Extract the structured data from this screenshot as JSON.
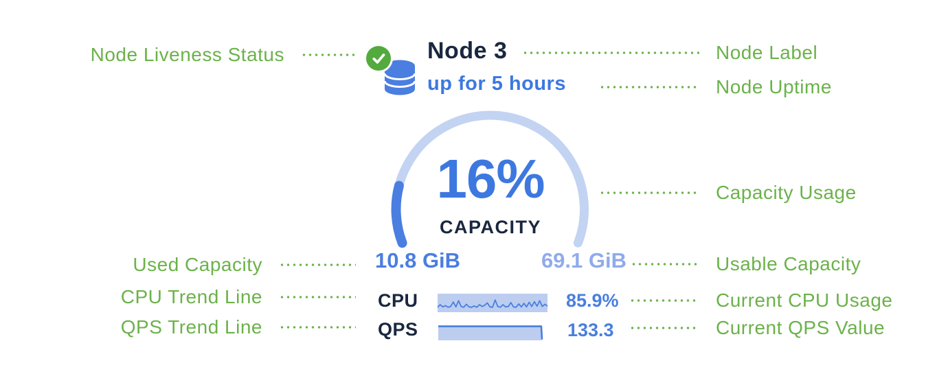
{
  "node": {
    "label": "Node 3",
    "uptime": "up for 5 hours",
    "capacity_percent_label": "16%",
    "capacity_caption": "CAPACITY",
    "used_capacity": "10.8 GiB",
    "usable_capacity": "69.1 GiB",
    "cpu": {
      "label": "CPU",
      "value": "85.9%"
    },
    "qps": {
      "label": "QPS",
      "value": "133.3"
    }
  },
  "annotations": {
    "left": [
      {
        "id": "node-liveness-status",
        "label": "Node Liveness Status"
      },
      {
        "id": "used-capacity",
        "label": "Used Capacity"
      },
      {
        "id": "cpu-trend-line",
        "label": "CPU Trend Line"
      },
      {
        "id": "qps-trend-line",
        "label": "QPS Trend Line"
      }
    ],
    "right": [
      {
        "id": "node-label",
        "label": "Node Label"
      },
      {
        "id": "node-uptime",
        "label": "Node Uptime"
      },
      {
        "id": "capacity-usage",
        "label": "Capacity Usage"
      },
      {
        "id": "usable-capacity",
        "label": "Usable Capacity"
      },
      {
        "id": "current-cpu-usage",
        "label": "Current CPU Usage"
      },
      {
        "id": "current-qps-value",
        "label": "Current QPS Value"
      }
    ]
  },
  "icons": {
    "liveness": "check-circle-icon",
    "node": "database-icon"
  },
  "colors": {
    "annotation_green": "#6bb24a",
    "status_green": "#53aa3d",
    "node_blue": "#4a7ee0",
    "value_blue": "#3d78e0",
    "usable_blue": "#8fabec",
    "navy": "#19273f",
    "track_blue": "#c3d3f2",
    "spark_bg": "#bccdf0"
  },
  "chart_data": {
    "type": "node-status-widget",
    "gauge": {
      "type": "gauge",
      "percent": 16,
      "label": "CAPACITY",
      "used_gib": 10.8,
      "usable_gib": 69.1,
      "start_angle_deg": 201,
      "end_angle_deg": -21
    },
    "cpu_trend": {
      "type": "line",
      "current_percent": 85.9,
      "values_normalized": [
        0.22,
        0.42,
        0.25,
        0.35,
        0.22,
        0.28,
        0.62,
        0.25,
        0.72,
        0.28,
        0.22,
        0.45,
        0.25,
        0.22,
        0.32,
        0.22,
        0.42,
        0.28,
        0.38,
        0.55,
        0.25,
        0.22,
        0.78,
        0.28,
        0.22,
        0.42,
        0.25,
        0.28,
        0.58,
        0.25,
        0.22,
        0.48,
        0.25,
        0.52,
        0.25,
        0.6,
        0.28,
        0.65,
        0.3,
        0.72,
        0.28,
        0.45,
        0.3
      ]
    },
    "qps_trend": {
      "type": "area",
      "current": 133.3,
      "points_normalized": [
        [
          0,
          0.92
        ],
        [
          0.955,
          0.92
        ],
        [
          0.962,
          0.04
        ]
      ]
    }
  }
}
